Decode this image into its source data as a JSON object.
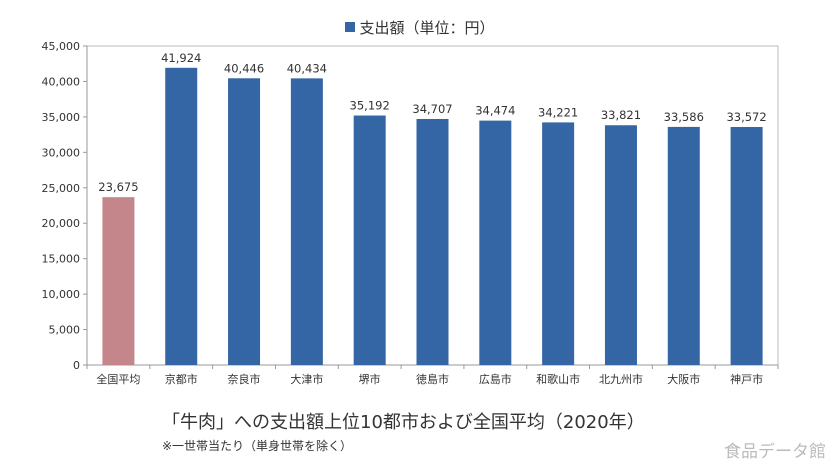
{
  "chart_data": {
    "type": "bar",
    "title": "「牛肉」への支出額上位10都市および全国平均（2020年）",
    "subtitle": "※一世帯当たり（単身世帯を除く）",
    "legend": {
      "label": "支出額（単位：円）",
      "placement": "top"
    },
    "categories": [
      "全国平均",
      "京都市",
      "奈良市",
      "大津市",
      "堺市",
      "徳島市",
      "広島市",
      "和歌山市",
      "北九州市",
      "大阪市",
      "神戸市"
    ],
    "values": [
      23675,
      41924,
      40446,
      40434,
      35192,
      34707,
      34474,
      34221,
      33821,
      33586,
      33572
    ],
    "data_labels": [
      "23,675",
      "41,924",
      "40,446",
      "40,434",
      "35,192",
      "34,707",
      "34,474",
      "34,221",
      "33,821",
      "33,586",
      "33,572"
    ],
    "ylim": [
      0,
      45000
    ],
    "yticks": [
      "0",
      "5,000",
      "10,000",
      "15,000",
      "20,000",
      "25,000",
      "30,000",
      "35,000",
      "40,000",
      "45,000"
    ],
    "grid": false,
    "colors": {
      "cities": "#3465a4",
      "national_average": "#c4868a"
    }
  },
  "brand": "食品データ館"
}
